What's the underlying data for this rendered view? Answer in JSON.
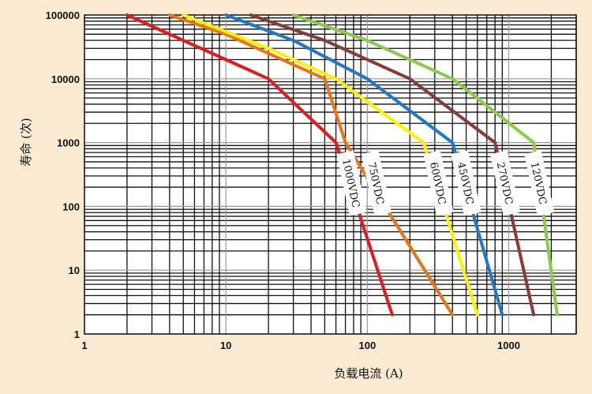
{
  "chart_data": {
    "type": "line",
    "title": "",
    "xlabel": "负载电流 (A)",
    "ylabel": "寿命 (次)",
    "x_scale": "log",
    "y_scale": "log",
    "xlim": [
      1,
      3000
    ],
    "ylim": [
      1,
      100000
    ],
    "x_tick_labels": [
      "1",
      "10",
      "100",
      "1000"
    ],
    "y_tick_labels": [
      "1",
      "10",
      "100",
      "1000",
      "10000",
      "100000"
    ],
    "grid": true,
    "background_color": "#FFFFFF",
    "page_color": "#FCEBD3",
    "series": [
      {
        "name": "1000VDC",
        "color": "#E41A1C",
        "x": [
          2,
          10,
          20,
          60,
          150
        ],
        "y": [
          100000,
          20000,
          10000,
          1000,
          2
        ]
      },
      {
        "name": "750VDC",
        "color": "#E8751A",
        "x": [
          4,
          10,
          50,
          70,
          400
        ],
        "y": [
          100000,
          50000,
          10000,
          1000,
          2
        ]
      },
      {
        "name": "600VDC",
        "color": "#FFF200",
        "x": [
          5,
          20,
          60,
          250,
          600
        ],
        "y": [
          100000,
          30000,
          10000,
          1000,
          2
        ]
      },
      {
        "name": "450VDC",
        "color": "#1F78C8",
        "x": [
          10,
          30,
          100,
          400,
          900
        ],
        "y": [
          100000,
          40000,
          10000,
          1000,
          2
        ]
      },
      {
        "name": "270VDC",
        "color": "#8B3A3A",
        "x": [
          15,
          50,
          200,
          800,
          1500
        ],
        "y": [
          100000,
          40000,
          10000,
          1000,
          2
        ]
      },
      {
        "name": "120VDC",
        "color": "#8CCB4A",
        "x": [
          30,
          100,
          400,
          1500,
          2200
        ],
        "y": [
          100000,
          40000,
          10000,
          1000,
          2
        ]
      }
    ],
    "series_labels_placement": "rotated boxes near y≈100"
  }
}
